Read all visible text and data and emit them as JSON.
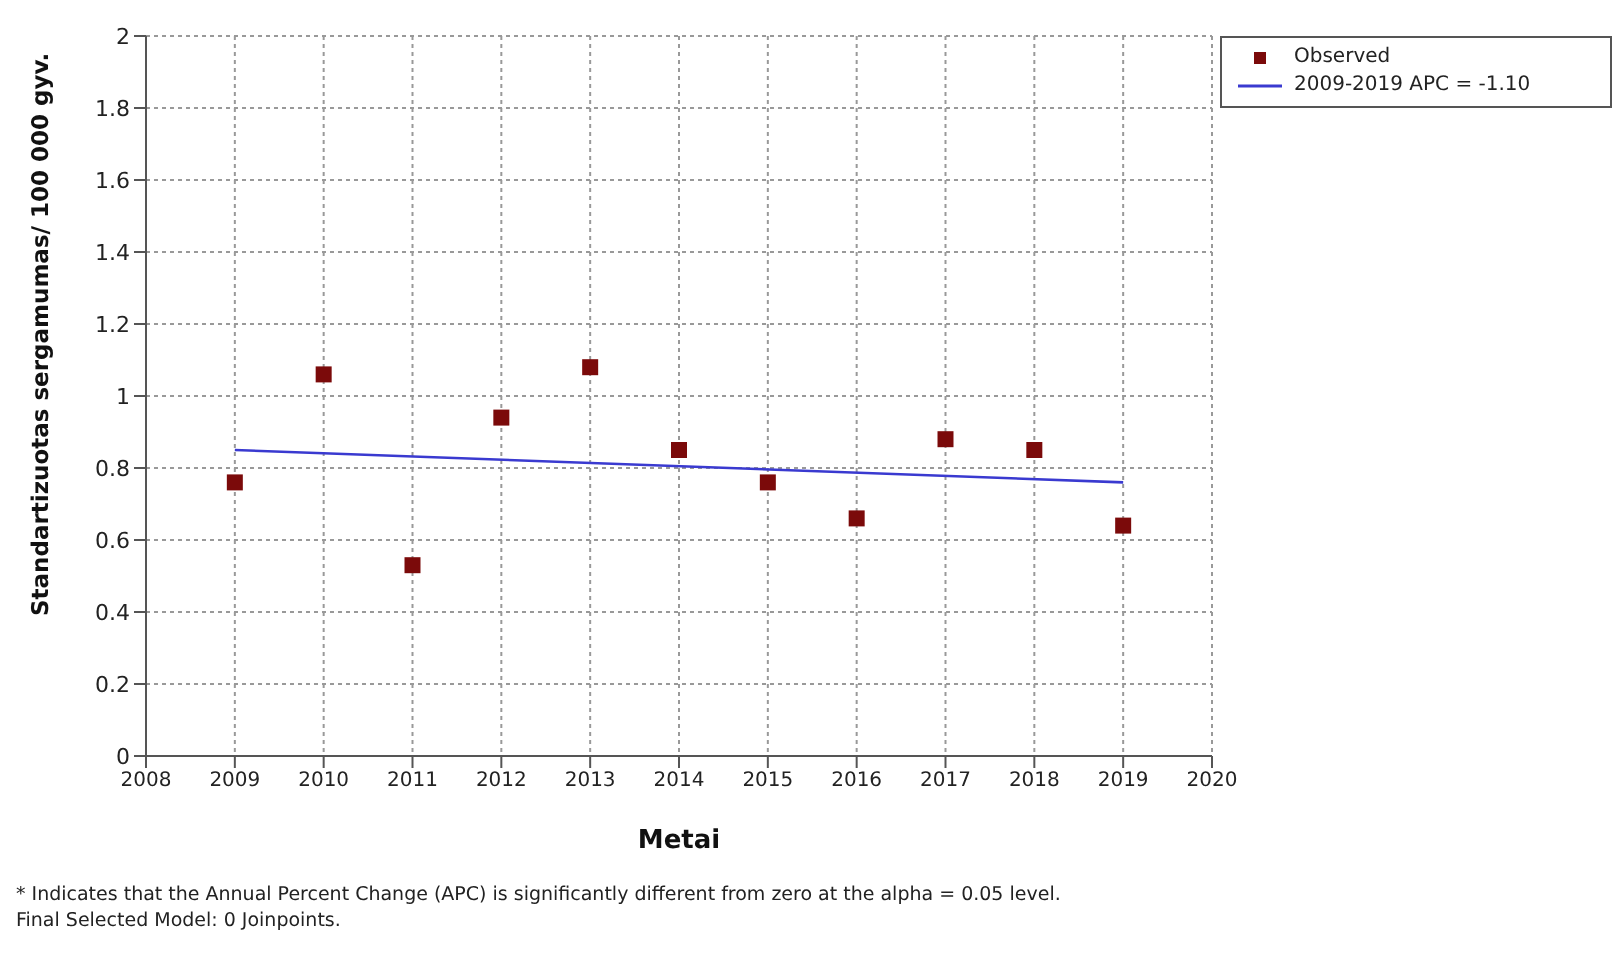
{
  "chart_data": {
    "type": "scatter",
    "xlabel": "Metai",
    "ylabel": "Standartizuotas sergamumas/ 100 000 gyv.",
    "x": [
      2009,
      2010,
      2011,
      2012,
      2013,
      2014,
      2015,
      2016,
      2017,
      2018,
      2019
    ],
    "series": [
      {
        "name": "Observed",
        "color": "#7b0a0a",
        "marker": "square",
        "values": [
          0.76,
          1.06,
          0.53,
          0.94,
          1.08,
          0.85,
          0.76,
          0.66,
          0.88,
          0.85,
          0.64
        ]
      },
      {
        "name": "2009-2019 APC  = -1.10",
        "type": "line",
        "color": "#3a3ad0",
        "line_style": "solid",
        "marker": "none",
        "x": [
          2009,
          2019
        ],
        "values": [
          0.85,
          0.76
        ]
      }
    ],
    "xlim": [
      2008,
      2020
    ],
    "xticks": [
      2008,
      2009,
      2010,
      2011,
      2012,
      2013,
      2014,
      2015,
      2016,
      2017,
      2018,
      2019,
      2020
    ],
    "ylim": [
      0,
      2
    ],
    "yticks": [
      0,
      0.2,
      0.4,
      0.6,
      0.8,
      1,
      1.2,
      1.4,
      1.6,
      1.8,
      2
    ],
    "grid": true,
    "legend": "top right",
    "annotations": [
      "* Indicates that the Annual Percent Change (APC) is significantly different from zero at the alpha = 0.05 level.",
      "Final Selected Model: 0 Joinpoints."
    ]
  }
}
